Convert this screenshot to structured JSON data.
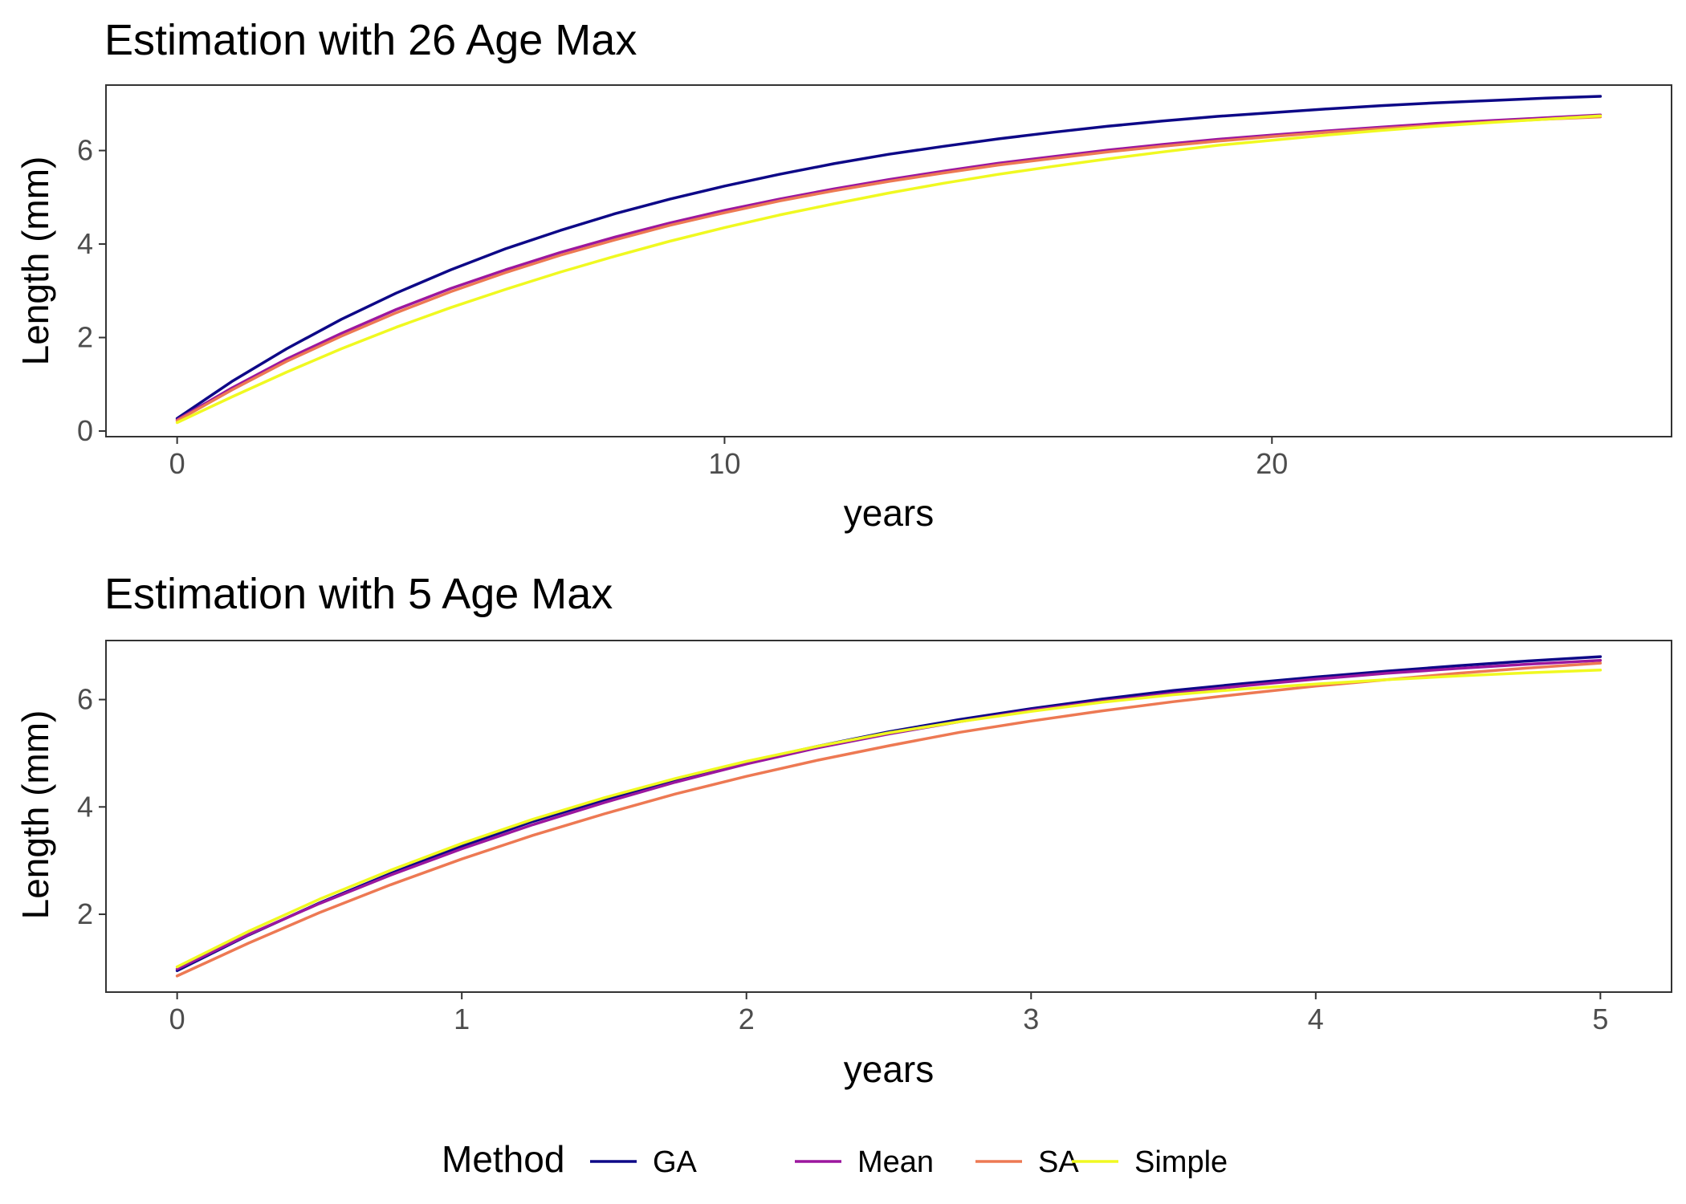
{
  "chart_data": [
    {
      "type": "line",
      "title": "Estimation with 26 Age Max",
      "xlabel": "years",
      "ylabel": "Length (mm)",
      "xlim": [
        -1.3,
        27.3
      ],
      "ylim": [
        -0.12,
        7.4
      ],
      "xticks": [
        0,
        10,
        20
      ],
      "yticks": [
        0,
        2,
        4,
        6
      ],
      "grid": false,
      "series": [
        {
          "name": "GA",
          "color": "#0d0887",
          "x": [
            0,
            1,
            2,
            3,
            4,
            5,
            6,
            7,
            8,
            9,
            10,
            11,
            12,
            13,
            14,
            15,
            16,
            17,
            18,
            19,
            20,
            21,
            22,
            23,
            24,
            25,
            26
          ],
          "y": [
            0.27,
            1.06,
            1.76,
            2.39,
            2.95,
            3.45,
            3.9,
            4.29,
            4.65,
            4.96,
            5.24,
            5.49,
            5.72,
            5.92,
            6.09,
            6.25,
            6.39,
            6.52,
            6.63,
            6.73,
            6.81,
            6.89,
            6.96,
            7.02,
            7.07,
            7.12,
            7.16
          ]
        },
        {
          "name": "Mean",
          "color": "#9c179e",
          "x": [
            0,
            1,
            2,
            3,
            4,
            5,
            6,
            7,
            8,
            9,
            10,
            11,
            12,
            13,
            14,
            15,
            16,
            17,
            18,
            19,
            20,
            21,
            22,
            23,
            24,
            25,
            26
          ],
          "y": [
            0.24,
            0.92,
            1.54,
            2.09,
            2.6,
            3.05,
            3.45,
            3.82,
            4.15,
            4.45,
            4.72,
            4.96,
            5.18,
            5.38,
            5.56,
            5.73,
            5.87,
            6.01,
            6.13,
            6.24,
            6.33,
            6.42,
            6.5,
            6.58,
            6.64,
            6.7,
            6.76
          ]
        },
        {
          "name": "SA",
          "color": "#ed7953",
          "x": [
            0,
            1,
            2,
            3,
            4,
            5,
            6,
            7,
            8,
            9,
            10,
            11,
            12,
            13,
            14,
            15,
            16,
            17,
            18,
            19,
            20,
            21,
            22,
            23,
            24,
            25,
            26
          ],
          "y": [
            0.22,
            0.88,
            1.49,
            2.03,
            2.53,
            2.98,
            3.39,
            3.76,
            4.09,
            4.4,
            4.67,
            4.92,
            5.14,
            5.34,
            5.52,
            5.69,
            5.83,
            5.97,
            6.09,
            6.2,
            6.3,
            6.39,
            6.47,
            6.54,
            6.61,
            6.67,
            6.72
          ]
        },
        {
          "name": "Simple",
          "color": "#f0f921",
          "x": [
            0,
            1,
            2,
            3,
            4,
            5,
            6,
            7,
            8,
            9,
            10,
            11,
            12,
            13,
            14,
            15,
            16,
            17,
            18,
            19,
            20,
            21,
            22,
            23,
            24,
            25,
            26
          ],
          "y": [
            0.18,
            0.73,
            1.26,
            1.76,
            2.22,
            2.64,
            3.03,
            3.4,
            3.74,
            4.06,
            4.35,
            4.62,
            4.86,
            5.09,
            5.3,
            5.49,
            5.66,
            5.82,
            5.97,
            6.11,
            6.22,
            6.33,
            6.43,
            6.52,
            6.6,
            6.67,
            6.74
          ]
        }
      ]
    },
    {
      "type": "line",
      "title": "Estimation with 5 Age Max",
      "xlabel": "years",
      "ylabel": "Length (mm)",
      "xlim": [
        -0.25,
        5.25
      ],
      "ylim": [
        0.55,
        7.1
      ],
      "xticks": [
        0,
        1,
        2,
        3,
        4,
        5
      ],
      "yticks": [
        2,
        4,
        6
      ],
      "grid": false,
      "series": [
        {
          "name": "GA",
          "color": "#0d0887",
          "x": [
            0,
            0.25,
            0.5,
            0.75,
            1,
            1.25,
            1.5,
            1.75,
            2,
            2.25,
            2.5,
            2.75,
            3,
            3.25,
            3.5,
            3.75,
            4,
            4.25,
            4.5,
            4.75,
            5
          ],
          "y": [
            0.95,
            1.61,
            2.21,
            2.76,
            3.27,
            3.73,
            4.13,
            4.5,
            4.84,
            5.13,
            5.4,
            5.63,
            5.83,
            6.01,
            6.17,
            6.3,
            6.42,
            6.53,
            6.63,
            6.72,
            6.8
          ]
        },
        {
          "name": "Mean",
          "color": "#9c179e",
          "x": [
            0,
            0.25,
            0.5,
            0.75,
            1,
            1.25,
            1.5,
            1.75,
            2,
            2.25,
            2.5,
            2.75,
            3,
            3.25,
            3.5,
            3.75,
            4,
            4.25,
            4.5,
            4.75,
            5
          ],
          "y": [
            0.98,
            1.62,
            2.2,
            2.73,
            3.22,
            3.67,
            4.08,
            4.46,
            4.8,
            5.1,
            5.36,
            5.59,
            5.8,
            5.97,
            6.12,
            6.26,
            6.38,
            6.49,
            6.58,
            6.66,
            6.73
          ]
        },
        {
          "name": "SA",
          "color": "#ed7953",
          "x": [
            0,
            0.25,
            0.5,
            0.75,
            1,
            1.25,
            1.5,
            1.75,
            2,
            2.25,
            2.5,
            2.75,
            3,
            3.25,
            3.5,
            3.75,
            4,
            4.25,
            4.5,
            4.75,
            5
          ],
          "y": [
            0.85,
            1.46,
            2.03,
            2.55,
            3.03,
            3.47,
            3.87,
            4.24,
            4.57,
            4.87,
            5.14,
            5.39,
            5.6,
            5.79,
            5.96,
            6.11,
            6.25,
            6.37,
            6.49,
            6.59,
            6.68
          ]
        },
        {
          "name": "Simple",
          "color": "#f0f921",
          "x": [
            0,
            0.25,
            0.5,
            0.75,
            1,
            1.25,
            1.5,
            1.75,
            2,
            2.25,
            2.5,
            2.75,
            3,
            3.25,
            3.5,
            3.75,
            4,
            4.25,
            4.5,
            4.75,
            5
          ],
          "y": [
            1.02,
            1.68,
            2.28,
            2.82,
            3.32,
            3.77,
            4.17,
            4.53,
            4.85,
            5.13,
            5.38,
            5.59,
            5.78,
            5.95,
            6.09,
            6.2,
            6.29,
            6.37,
            6.44,
            6.5,
            6.55
          ]
        }
      ]
    }
  ],
  "legend": {
    "title": "Method",
    "position": "bottom",
    "items": [
      {
        "label": "GA",
        "color": "#0d0887"
      },
      {
        "label": "Mean",
        "color": "#9c179e"
      },
      {
        "label": "SA",
        "color": "#ed7953"
      },
      {
        "label": "Simple",
        "color": "#f0f921"
      }
    ]
  }
}
